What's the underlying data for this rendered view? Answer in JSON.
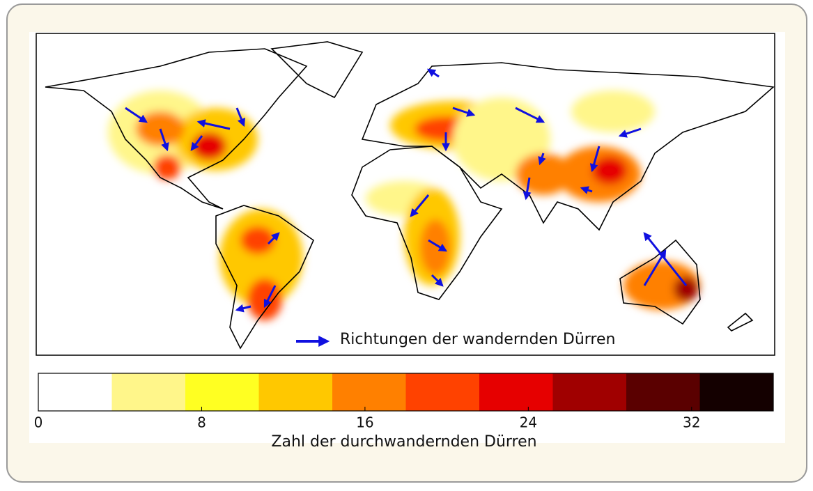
{
  "map": {
    "arrow_legend": "Richtungen der wandernden Dürren",
    "arrow_color": "#1010e0"
  },
  "colorbar": {
    "label": "Zahl der durchwandernden Dürren",
    "lim": [
      0,
      36
    ],
    "ticks": [
      0,
      8,
      16,
      24,
      32
    ],
    "colors": [
      "#ffffff",
      "#fff68a",
      "#ffff22",
      "#ffc800",
      "#ff8000",
      "#ff4200",
      "#e60000",
      "#a00000",
      "#5a0000",
      "#140000"
    ]
  }
}
